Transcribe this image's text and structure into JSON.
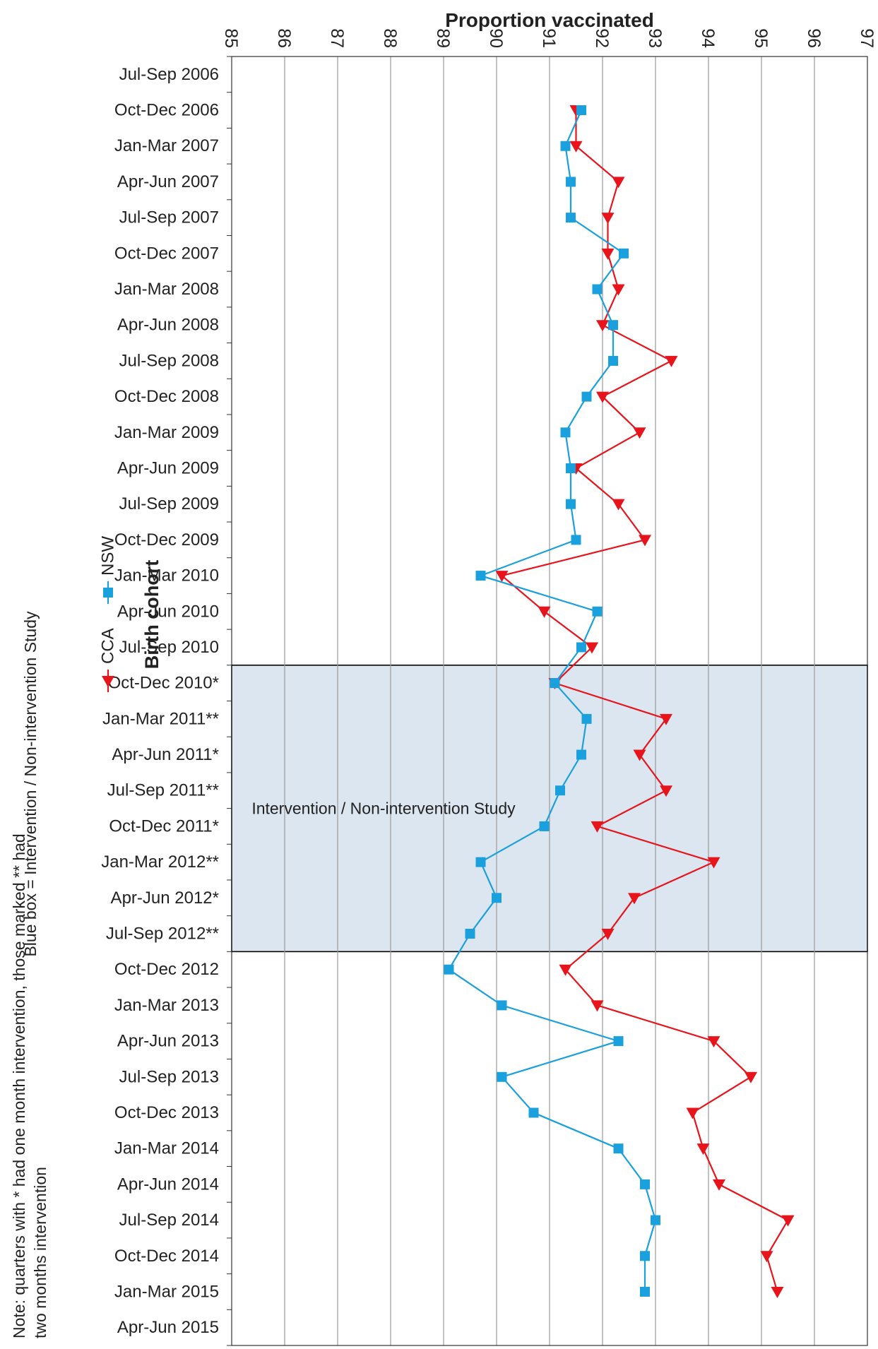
{
  "chart_data": {
    "type": "line",
    "ylabel": "Proportion vaccinated",
    "ylim": [
      85,
      97
    ],
    "y_ticks": [
      "97",
      "96",
      "95",
      "94",
      "93",
      "92",
      "91",
      "90",
      "89",
      "88",
      "87",
      "86",
      "85"
    ],
    "categories": [
      "Jul-Sep 2006",
      "Oct-Dec 2006",
      "Jan-Mar 2007",
      "Apr-Jun 2007",
      "Jul-Sep 2007",
      "Oct-Dec 2007",
      "Jan-Mar 2008",
      "Apr-Jun 2008",
      "Jul-Sep 2008",
      "Oct-Dec 2008",
      "Jan-Mar 2009",
      "Apr-Jun 2009",
      "Jul-Sep 2009",
      "Oct-Dec 2009",
      "Jan-Mar 2010",
      "Apr-Jun 2010",
      "Jul-Sep 2010",
      "Oct-Dec 2010*",
      "Jan-Mar 2011**",
      "Apr-Jun 2011*",
      "Jul-Sep 2011**",
      "Oct-Dec 2011*",
      "Jan-Mar 2012**",
      "Apr-Jun 2012*",
      "Jul-Sep 2012**",
      "Oct-Dec 2012",
      "Jan-Mar 2013",
      "Apr-Jun 2013",
      "Jul-Sep 2013",
      "Oct-Dec 2013",
      "Jan-Mar 2014",
      "Apr-Jun 2014",
      "Jul-Sep 2014",
      "Oct-Dec 2014",
      "Jan-Mar 2015",
      "Apr-Jun 2015"
    ],
    "series": [
      {
        "name": "CCA",
        "color": "#e8141c",
        "marker": "triangle",
        "values": [
          null,
          91.5,
          91.5,
          92.3,
          92.1,
          92.1,
          92.3,
          92.0,
          93.3,
          92.0,
          92.7,
          91.5,
          92.3,
          92.8,
          90.1,
          90.9,
          91.8,
          91.1,
          93.2,
          92.7,
          93.2,
          91.9,
          94.1,
          92.6,
          92.1,
          91.3,
          91.9,
          94.1,
          94.8,
          93.7,
          93.9,
          94.2,
          95.5,
          95.1,
          95.3,
          null
        ]
      },
      {
        "name": "NSW",
        "color": "#1aa0dc",
        "marker": "square",
        "values": [
          null,
          91.6,
          91.3,
          91.4,
          91.4,
          92.4,
          91.9,
          92.2,
          92.2,
          91.7,
          91.3,
          91.4,
          91.4,
          91.5,
          89.7,
          91.9,
          91.6,
          91.1,
          91.7,
          91.6,
          91.2,
          90.9,
          89.7,
          90.0,
          89.5,
          89.1,
          90.1,
          92.3,
          90.1,
          90.7,
          92.3,
          92.8,
          93.0,
          92.8,
          92.8,
          null
        ]
      }
    ],
    "highlight": {
      "label": "Intervention / Non-intervention Study",
      "from": "Oct-Dec 2010*",
      "to": "Jul-Sep 2012**",
      "fill": "#dce6f1"
    },
    "legend": {
      "title": "Birth cohort",
      "placement": "bottom"
    },
    "grid": true,
    "box_note": "Blue box = Intervention / Non-intervention Study",
    "footnote": "Note: quarters with * had one month intervention, those marked ** had two months intervention",
    "orientation": "rotated-90"
  }
}
